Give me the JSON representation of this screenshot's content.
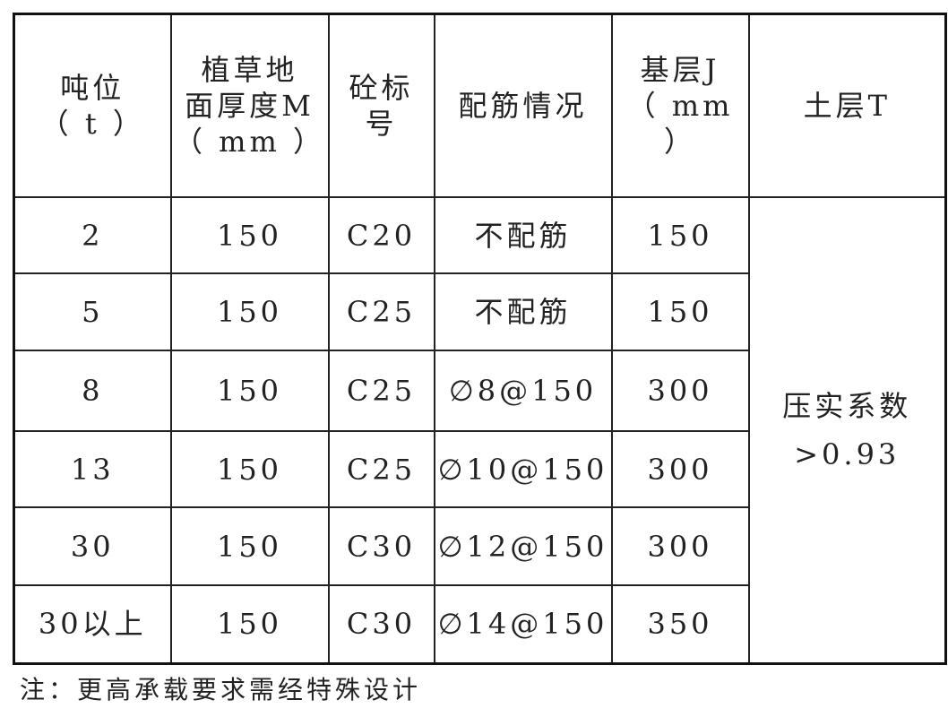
{
  "headers": [
    {
      "lines": [
        "吨位",
        "（ t ）"
      ]
    },
    {
      "lines": [
        "植草地",
        "面厚度M",
        "（ mm ）"
      ]
    },
    {
      "lines": [
        "砼标",
        "号"
      ]
    },
    {
      "lines": [
        "配筋情况"
      ]
    },
    {
      "lines": [
        "基层J",
        "（ mm ）"
      ]
    },
    {
      "lines": [
        "土层T"
      ]
    }
  ],
  "rows": [
    [
      "2",
      "150",
      "C20",
      "不配筋",
      "150"
    ],
    [
      "5",
      "150",
      "C25",
      "不配筋",
      "150"
    ],
    [
      "8",
      "150",
      "C25",
      "∅8@150",
      "300"
    ],
    [
      "13",
      "150",
      "C25",
      "∅10@150",
      "300"
    ],
    [
      "30",
      "150",
      "C30",
      "∅12@150",
      "300"
    ],
    [
      "30以上",
      "150",
      "C30",
      "∅14@150",
      "350"
    ]
  ],
  "soil_layer": {
    "lines": [
      "压实系数",
      ">0.93"
    ]
  },
  "note": "注：更高承载要求需经特殊设计"
}
